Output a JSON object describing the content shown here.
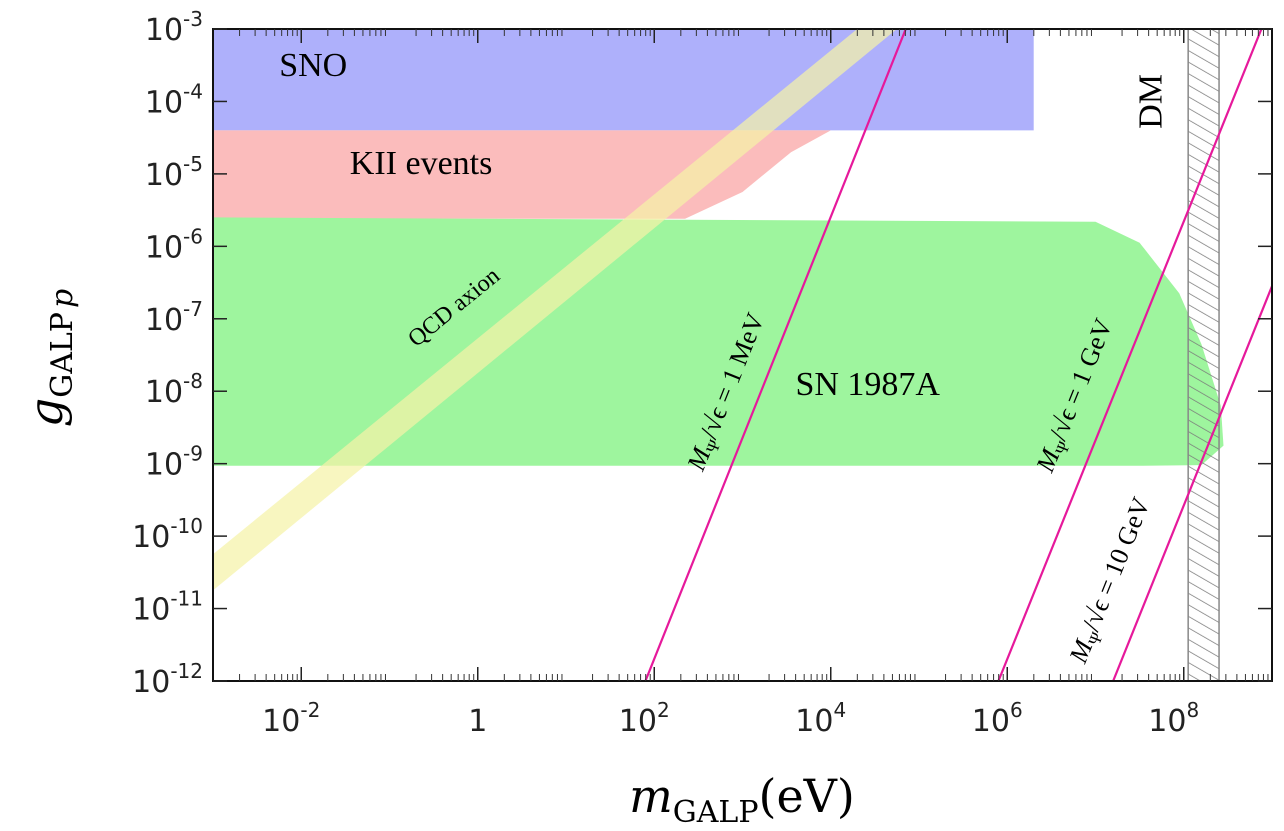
{
  "chart_data": {
    "type": "area",
    "title": "",
    "xlabel": {
      "main": "m",
      "sub": "GALP",
      "unit": "(eV)"
    },
    "ylabel": {
      "main": "g",
      "sub": "GALP",
      "sub2": "p"
    },
    "xscale": "log",
    "yscale": "log",
    "xlim_log10": [
      -3.0,
      9.0
    ],
    "ylim_log10": [
      -12.0,
      -3.0
    ],
    "x_ticks": [
      {
        "log": -2,
        "base": "10",
        "exp": "-2"
      },
      {
        "log": 0,
        "base": "1",
        "exp": ""
      },
      {
        "log": 2,
        "base": "10",
        "exp": "2"
      },
      {
        "log": 4,
        "base": "10",
        "exp": "4"
      },
      {
        "log": 6,
        "base": "10",
        "exp": "6"
      },
      {
        "log": 8,
        "base": "10",
        "exp": "8"
      }
    ],
    "y_ticks": [
      {
        "log": -3,
        "base": "10",
        "exp": "-3"
      },
      {
        "log": -4,
        "base": "10",
        "exp": "-4"
      },
      {
        "log": -5,
        "base": "10",
        "exp": "-5"
      },
      {
        "log": -6,
        "base": "10",
        "exp": "-6"
      },
      {
        "log": -7,
        "base": "10",
        "exp": "-7"
      },
      {
        "log": -8,
        "base": "10",
        "exp": "-8"
      },
      {
        "log": -9,
        "base": "10",
        "exp": "-9"
      },
      {
        "log": -10,
        "base": "10",
        "exp": "-10"
      },
      {
        "log": -11,
        "base": "10",
        "exp": "-11"
      },
      {
        "log": -12,
        "base": "10",
        "exp": "-12"
      }
    ],
    "regions": [
      {
        "name": "SNO",
        "label": "SNO",
        "color": "#aeb0fb",
        "label_color": "#2448b5",
        "polygon_log10": [
          [
            -3.0,
            -3.0
          ],
          [
            6.3,
            -3.0
          ],
          [
            6.3,
            -4.4
          ],
          [
            -3.0,
            -4.4
          ]
        ],
        "label_pos_log10": [
          -2.25,
          -3.65
        ]
      },
      {
        "name": "KII events",
        "label": "KII events",
        "color": "#fbbcbc",
        "label_color": "#e8232a",
        "polygon_log10": [
          [
            -3.0,
            -4.4
          ],
          [
            4.0,
            -4.4
          ],
          [
            3.55,
            -4.7
          ],
          [
            3.0,
            -5.25
          ],
          [
            2.35,
            -5.62
          ],
          [
            -3.0,
            -5.62
          ]
        ],
        "label_pos_log10": [
          -1.45,
          -5.0
        ]
      },
      {
        "name": "SN 1987A",
        "label": "SN 1987A",
        "color": "#9ef59e",
        "label_color": "#4fb82a",
        "polygon_log10": [
          [
            -3.0,
            -5.6
          ],
          [
            7.0,
            -5.66
          ],
          [
            7.5,
            -5.95
          ],
          [
            7.95,
            -6.65
          ],
          [
            8.2,
            -7.35
          ],
          [
            8.42,
            -8.2
          ],
          [
            8.45,
            -8.75
          ],
          [
            8.2,
            -9.02
          ],
          [
            7.5,
            -9.03
          ],
          [
            -3.0,
            -9.03
          ]
        ],
        "label_pos_log10": [
          3.6,
          -8.05
        ]
      },
      {
        "name": "QCD axion",
        "label": "QCD axion",
        "color": "#f5f3a8",
        "label_color": "#f3a24a",
        "band_log10": [
          [
            -3.0,
            -10.25
          ],
          [
            4.3,
            -3.0
          ],
          [
            -3.0,
            -10.75
          ],
          [
            4.75,
            -3.0
          ]
        ],
        "label_pos_log10": [
          -0.7,
          -7.4
        ]
      },
      {
        "name": "DM",
        "label": "DM",
        "color": "#888888",
        "label_color": "#000000",
        "xrange_log10": [
          8.05,
          8.4
        ],
        "label_pos_log10": [
          7.75,
          -4.0
        ]
      }
    ],
    "lines": [
      {
        "name": "1 MeV",
        "label_prefix": "M",
        "label_sub": "Ψ",
        "label_mid": "/√ϵ = ",
        "label_value": "1 MeV",
        "color": "#e6199b",
        "points_log10": [
          [
            1.9,
            -12.0
          ],
          [
            4.85,
            -3.0
          ]
        ],
        "label_pos_log10": [
          2.9,
          -8.05
        ]
      },
      {
        "name": "1 GeV",
        "label_prefix": "M",
        "label_sub": "Ψ",
        "label_mid": "/√ϵ = ",
        "label_value": "1 GeV",
        "color": "#e6199b",
        "points_log10": [
          [
            5.9,
            -12.0
          ],
          [
            8.88,
            -3.0
          ]
        ],
        "label_pos_log10": [
          6.85,
          -8.1
        ]
      },
      {
        "name": "10 GeV",
        "label_prefix": "M",
        "label_sub": "Ψ",
        "label_mid": "/√ϵ = ",
        "label_value": "10 GeV",
        "color": "#e6199b",
        "points_log10": [
          [
            7.2,
            -12.0
          ],
          [
            9.0,
            -6.55
          ]
        ],
        "label_pos_log10": [
          7.25,
          -10.65
        ]
      }
    ]
  }
}
